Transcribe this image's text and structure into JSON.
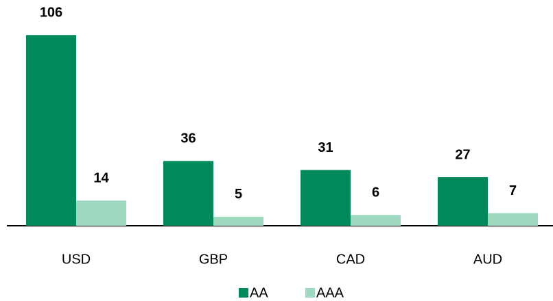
{
  "chart_data": {
    "type": "bar",
    "categories": [
      "USD",
      "GBP",
      "CAD",
      "AUD"
    ],
    "series": [
      {
        "name": "AA",
        "color": "#00895a",
        "values": [
          106,
          36,
          31,
          27
        ]
      },
      {
        "name": "AAA",
        "color": "#9ed9c0",
        "values": [
          14,
          5,
          6,
          7
        ]
      }
    ]
  }
}
